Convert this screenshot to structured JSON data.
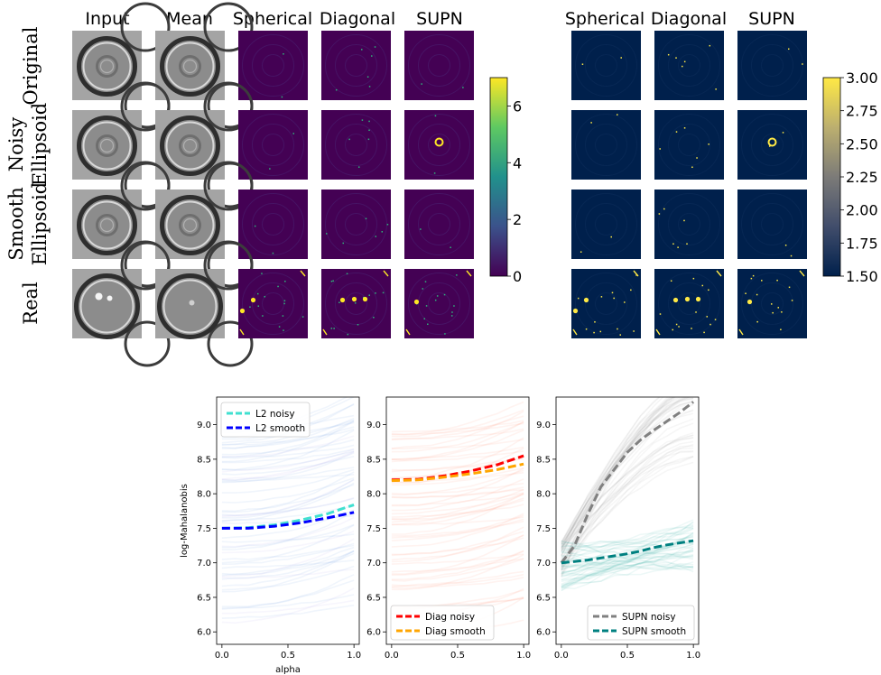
{
  "grid": {
    "column_titles_left": [
      "Input",
      "Mean",
      "Spherical",
      "Diagonal",
      "SUPN"
    ],
    "column_titles_right": [
      "Spherical",
      "Diagonal",
      "SUPN"
    ],
    "row_labels": [
      [
        "Original"
      ],
      [
        "Noisy",
        "Ellipsoid"
      ],
      [
        "Smooth",
        "Ellipsoid"
      ],
      [
        "Real"
      ]
    ],
    "colorbar_left": {
      "colormap": "viridis",
      "range": [
        0,
        7
      ],
      "ticks": [
        "0",
        "2",
        "4",
        "6"
      ]
    },
    "colorbar_right": {
      "colormap": "cividis",
      "range": [
        1.5,
        3.0
      ],
      "ticks": [
        "1.50",
        "1.75",
        "2.00",
        "2.25",
        "2.50",
        "2.75",
        "3.00"
      ]
    }
  },
  "colors": {
    "l2_noisy": "#40e0d0",
    "l2_smooth": "#0000ff",
    "diag_noisy": "#ff0000",
    "diag_smooth": "#ffa500",
    "supn_noisy": "#808080",
    "supn_smooth": "#008080",
    "viridis_dark": "#440154",
    "cividis_dark": "#00204c",
    "yellow": "#fde725"
  },
  "chart_data": [
    {
      "type": "line",
      "panel": "L2",
      "xlabel": "alpha",
      "ylabel": "log-Mahalanobis",
      "xlim": [
        -0.04,
        1.04
      ],
      "ylim": [
        5.82,
        9.4
      ],
      "xticks": [
        "0.0",
        "0.5",
        "1.0"
      ],
      "yticks": [
        "6.0",
        "6.5",
        "7.0",
        "7.5",
        "8.0",
        "8.5",
        "9.0"
      ],
      "legend_position": "upper left",
      "x": [
        0.0,
        0.2,
        0.4,
        0.6,
        0.8,
        1.0
      ],
      "series": [
        {
          "name": "L2 noisy",
          "values": [
            7.5,
            7.51,
            7.55,
            7.62,
            7.71,
            7.84
          ]
        },
        {
          "name": "L2 smooth",
          "values": [
            7.5,
            7.5,
            7.53,
            7.58,
            7.65,
            7.73
          ]
        }
      ]
    },
    {
      "type": "line",
      "panel": "Diag",
      "xlim": [
        -0.04,
        1.04
      ],
      "ylim": [
        5.82,
        9.4
      ],
      "xticks": [
        "0.0",
        "0.5",
        "1.0"
      ],
      "yticks": [
        "6.0",
        "6.5",
        "7.0",
        "7.5",
        "8.0",
        "8.5",
        "9.0"
      ],
      "legend_position": "lower left",
      "x": [
        0.0,
        0.2,
        0.4,
        0.6,
        0.8,
        1.0
      ],
      "series": [
        {
          "name": "Diag noisy",
          "values": [
            8.2,
            8.21,
            8.26,
            8.33,
            8.42,
            8.55
          ]
        },
        {
          "name": "Diag smooth",
          "values": [
            8.19,
            8.2,
            8.24,
            8.29,
            8.35,
            8.43
          ]
        }
      ]
    },
    {
      "type": "line",
      "panel": "SUPN",
      "xlim": [
        -0.04,
        1.04
      ],
      "ylim": [
        5.82,
        9.4
      ],
      "xticks": [
        "0.0",
        "0.5",
        "1.0"
      ],
      "yticks": [
        "6.0",
        "6.5",
        "7.0",
        "7.5",
        "8.0",
        "8.5",
        "9.0"
      ],
      "legend_position": "lower right",
      "x": [
        0.0,
        0.1,
        0.2,
        0.3,
        0.4,
        0.5,
        0.6,
        0.7,
        0.8,
        0.9,
        1.0
      ],
      "series": [
        {
          "name": "SUPN noisy",
          "values": [
            7.0,
            7.25,
            7.7,
            8.1,
            8.35,
            8.6,
            8.78,
            8.92,
            9.05,
            9.18,
            9.33
          ]
        },
        {
          "name": "SUPN smooth",
          "values": [
            7.0,
            7.02,
            7.04,
            7.07,
            7.1,
            7.13,
            7.17,
            7.22,
            7.26,
            7.29,
            7.32
          ]
        }
      ]
    }
  ]
}
